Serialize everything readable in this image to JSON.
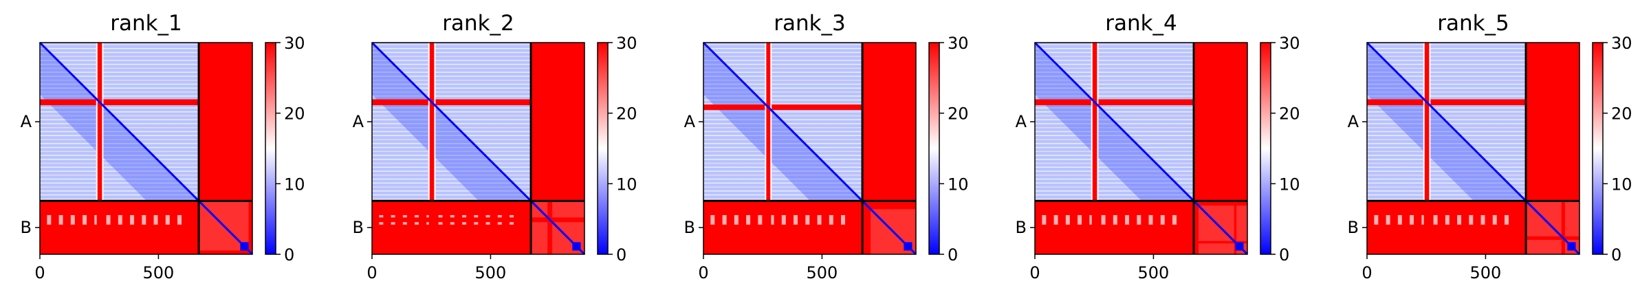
{
  "chart_data": {
    "type": "heatmap",
    "colormap": {
      "low": "#0000ff",
      "mid": "#ffffff",
      "high": "#ff0000"
    },
    "colorbar": {
      "range": [
        0,
        30
      ],
      "ticks": [
        "0",
        "10",
        "20",
        "30"
      ]
    },
    "x_range": [
      0,
      896
    ],
    "x_ticks": [
      {
        "value": 0,
        "label": "0"
      },
      {
        "value": 500,
        "label": "500"
      }
    ],
    "chains": [
      {
        "label": "A",
        "start": 0,
        "end": 670
      },
      {
        "label": "B",
        "start": 670,
        "end": 896
      }
    ],
    "panels": [
      {
        "title": "rank_1",
        "gaps": [
          {
            "start": 240,
            "end": 265
          },
          {
            "start": 880,
            "end": 896
          }
        ]
      },
      {
        "title": "rank_2",
        "gaps": [
          {
            "start": 240,
            "end": 265
          },
          {
            "start": 740,
            "end": 760
          }
        ]
      },
      {
        "title": "rank_3",
        "gaps": [
          {
            "start": 262,
            "end": 285
          },
          {
            "start": 670,
            "end": 705
          }
        ]
      },
      {
        "title": "rank_4",
        "gaps": [
          {
            "start": 240,
            "end": 265
          },
          {
            "start": 670,
            "end": 690
          },
          {
            "start": 840,
            "end": 850
          }
        ]
      },
      {
        "title": "rank_5",
        "gaps": [
          {
            "start": 240,
            "end": 265
          },
          {
            "start": 820,
            "end": 835
          }
        ]
      }
    ]
  }
}
